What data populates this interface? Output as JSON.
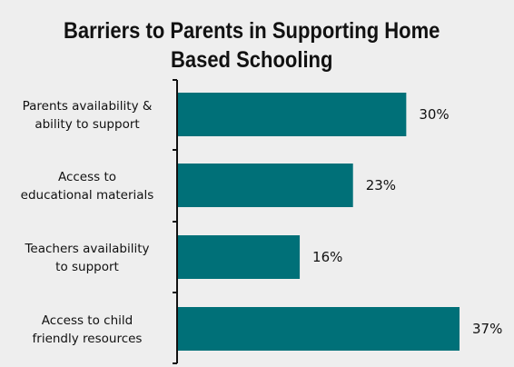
{
  "page": {
    "top_fragment_text": "",
    "colors": {
      "background": "#eeeeee",
      "bar": "#007078",
      "axis": "#111111",
      "accent": "#c0392b"
    }
  },
  "chart_data": {
    "type": "bar",
    "orientation": "horizontal",
    "title": "Barriers to Parents in Supporting Home Based Schooling",
    "title_lines": [
      "Barriers to Parents in Supporting Home",
      "Based Schooling"
    ],
    "categories": [
      [
        "Parents availability &",
        "ability to support"
      ],
      [
        "Access to",
        "educational materials"
      ],
      [
        "Teachers availability",
        "to support"
      ],
      [
        "Access to child",
        "friendly resources"
      ]
    ],
    "values": [
      30,
      23,
      16,
      37
    ],
    "value_labels": [
      "30%",
      "23%",
      "16%",
      "37%"
    ],
    "unit": "%",
    "xlim": [
      0,
      37
    ],
    "grid": false,
    "legend": "none"
  }
}
